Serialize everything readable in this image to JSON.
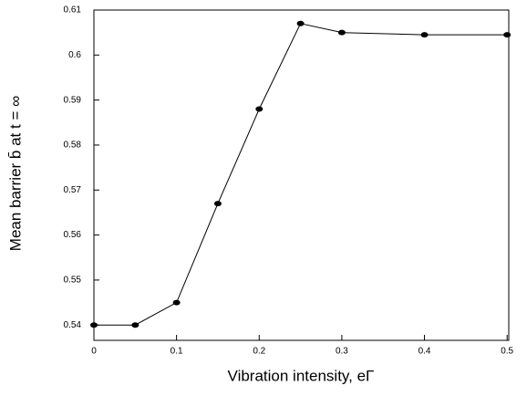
{
  "chart_data": {
    "type": "line",
    "xlabel": "Vibration intensity, eΓ",
    "ylabel": "Mean barrier b̄ at  t = ∞",
    "x": [
      0,
      0.05,
      0.1,
      0.15,
      0.2,
      0.25,
      0.3,
      0.4,
      0.5
    ],
    "series": [
      {
        "color": "#000000",
        "values": [
          0.54,
          0.54,
          0.545,
          0.567,
          0.588,
          0.607,
          0.605,
          0.6045,
          0.6045
        ]
      }
    ],
    "xlim": [
      0,
      0.502
    ],
    "xticks": [
      0,
      0.1,
      0.2,
      0.3,
      0.4,
      0.5
    ],
    "ylim": [
      0.5366,
      0.61
    ],
    "yticks": [
      0.54,
      0.55,
      0.56,
      0.57,
      0.58,
      0.59,
      0.6,
      0.61
    ]
  }
}
